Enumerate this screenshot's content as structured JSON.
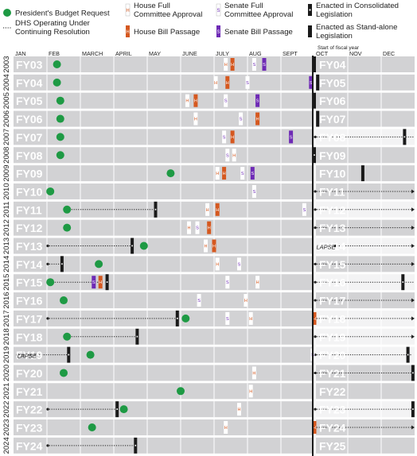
{
  "chart_data": {
    "type": "timeline",
    "title": "",
    "legend": {
      "placement": "top",
      "items": [
        {
          "key": "budget",
          "label": "President's Budget Request"
        },
        {
          "key": "cr",
          "label": "DHS Operating Under Continuing Resolution"
        },
        {
          "key": "house_committee",
          "glyph": "H",
          "label": "House Full Committee Approval"
        },
        {
          "key": "house_passage",
          "glyph": "H",
          "label": "House Bill Passage"
        },
        {
          "key": "senate_committee",
          "glyph": "S",
          "label": "Senate Full Committee Approval"
        },
        {
          "key": "senate_passage",
          "glyph": "S",
          "label": "Senate Bill Passage"
        },
        {
          "key": "enacted_consolidated",
          "label": "Enacted in Consolidated Legislation"
        },
        {
          "key": "enacted_standalone",
          "label": "Enacted as Stand-alone Legislation"
        }
      ]
    },
    "start_of_fiscal_year_label": "Start of fiscal year",
    "lapse_label": "LAPSE",
    "month_axis": [
      "JAN",
      "FEB",
      "MARCH",
      "APRIL",
      "MAY",
      "JUNE",
      "JULY",
      "AUG",
      "SEPT",
      "OCT",
      "NOV",
      "DEC"
    ],
    "colors": {
      "bar": "#d2d2d4",
      "alt_bar": "#f3f3f4",
      "budget": "#1e9a44",
      "house_passage": "#d5581f",
      "senate_passage": "#6e2ab5",
      "enacted": "#1a1a1a",
      "house_text": "#d5581f",
      "senate_text": "#6e2ab5"
    },
    "rows": [
      {
        "year": "2003",
        "fy": "FY03",
        "next_fy": "FY04",
        "dark": true,
        "budget": 1.3,
        "events": [
          {
            "type": "house_committee",
            "m": 6.35
          },
          {
            "type": "house_passage",
            "m": 6.55
          },
          {
            "type": "senate_committee",
            "m": 7.2
          },
          {
            "type": "senate_passage",
            "m": 7.5
          },
          {
            "type": "enacted_standalone",
            "m": 9.0
          }
        ]
      },
      {
        "year": "2004",
        "fy": "FY04",
        "next_fy": "FY05",
        "dark": true,
        "budget": 1.3,
        "events": [
          {
            "type": "house_committee",
            "m": 6.05
          },
          {
            "type": "house_passage",
            "m": 6.4
          },
          {
            "type": "senate_committee",
            "m": 7.0
          },
          {
            "type": "senate_passage",
            "m": 8.9
          },
          {
            "type": "enacted_standalone",
            "m": 9.1
          }
        ]
      },
      {
        "year": "2005",
        "fy": "FY05",
        "next_fy": "FY06",
        "dark": true,
        "budget": 1.4,
        "events": [
          {
            "type": "house_committee",
            "m": 5.2
          },
          {
            "type": "house_passage",
            "m": 5.45
          },
          {
            "type": "senate_committee",
            "m": 6.35
          },
          {
            "type": "senate_passage",
            "m": 7.3
          },
          {
            "type": "enacted_standalone",
            "m": 9.0
          }
        ]
      },
      {
        "year": "2006",
        "fy": "FY06",
        "next_fy": "FY07",
        "dark": true,
        "budget": 1.4,
        "events": [
          {
            "type": "house_committee",
            "m": 5.45
          },
          {
            "type": "senate_committee",
            "m": 6.8
          },
          {
            "type": "house_passage",
            "m": 7.3
          },
          {
            "type": "enacted_standalone",
            "m": 9.1
          }
        ]
      },
      {
        "year": "2007",
        "fy": "FY07",
        "next_fy": "FY08",
        "dark": false,
        "budget": 1.4,
        "cr_from": 9.0,
        "cr_to": 12.0,
        "events": [
          {
            "type": "senate_committee",
            "m": 6.3
          },
          {
            "type": "house_passage",
            "m": 6.55
          },
          {
            "type": "senate_passage",
            "m": 8.3
          },
          {
            "type": "enacted_consolidated",
            "m": 11.7
          }
        ]
      },
      {
        "year": "2008",
        "fy": "FY08",
        "next_fy": "FY09",
        "dark": true,
        "budget": 1.4,
        "events": [
          {
            "type": "senate_committee",
            "m": 6.4
          },
          {
            "type": "house_committee",
            "m": 6.6
          },
          {
            "type": "enacted_consolidated",
            "m": 9.0
          }
        ]
      },
      {
        "year": "2009",
        "fy": "FY09",
        "next_fy": "FY10",
        "dark": true,
        "budget": 4.7,
        "events": [
          {
            "type": "house_committee",
            "m": 6.1
          },
          {
            "type": "house_passage",
            "m": 6.3
          },
          {
            "type": "senate_committee",
            "m": 6.85
          },
          {
            "type": "senate_passage",
            "m": 7.15
          },
          {
            "type": "enacted_standalone",
            "m": 10.45
          }
        ]
      },
      {
        "year": "2010",
        "fy": "FY10",
        "next_fy": "FY11",
        "dark": true,
        "budget": 1.1,
        "cr_from": 9.0,
        "cr_to": 12.0,
        "arrow": true,
        "events": [
          {
            "type": "senate_committee",
            "m": 7.2
          }
        ]
      },
      {
        "year": "2011",
        "fy": "FY11",
        "next_fy": "FY12",
        "dark": false,
        "budget": 1.6,
        "cr_from": 1.6,
        "cr_to": 4.2,
        "cr2_from": 9.0,
        "cr2_to": 12.0,
        "arrow": true,
        "events": [
          {
            "type": "enacted_consolidated",
            "m": 4.25
          },
          {
            "type": "house_committee",
            "m": 5.8
          },
          {
            "type": "house_passage",
            "m": 6.1
          },
          {
            "type": "senate_committee",
            "m": 8.7
          }
        ]
      },
      {
        "year": "2012",
        "fy": "FY12",
        "next_fy": "FY13",
        "dark": true,
        "budget": 1.6,
        "cr_from": 9.0,
        "cr_to": 12.0,
        "arrow": true,
        "events": [
          {
            "type": "house_committee",
            "m": 5.25
          },
          {
            "type": "senate_committee",
            "m": 5.5
          },
          {
            "type": "house_passage",
            "m": 5.85
          }
        ]
      },
      {
        "year": "2013",
        "fy": "FY13",
        "next_fy": "FY14",
        "dark": false,
        "budget": 3.9,
        "cr_from": 1.0,
        "cr_to": 3.5,
        "cr2_from": 9.6,
        "cr2_to": 12.0,
        "arrow": true,
        "lapse": 9.25,
        "events": [
          {
            "type": "enacted_consolidated",
            "m": 3.55
          },
          {
            "type": "house_committee",
            "m": 5.75
          },
          {
            "type": "house_passage",
            "m": 6.0
          }
        ]
      },
      {
        "year": "2014",
        "fy": "FY14",
        "next_fy": "FY15",
        "dark": true,
        "budget": 2.55,
        "cr_from": 1.0,
        "cr_to": 1.4,
        "cr2_from": 9.0,
        "cr2_to": 12.0,
        "arrow": true,
        "events": [
          {
            "type": "enacted_consolidated",
            "m": 1.45
          },
          {
            "type": "house_committee",
            "m": 6.1
          },
          {
            "type": "senate_committee",
            "m": 6.75
          }
        ]
      },
      {
        "year": "2015",
        "fy": "FY15",
        "next_fy": "FY16",
        "dark": false,
        "budget": 1.1,
        "cr_from": 1.1,
        "cr_to": 2.7,
        "cr2_from": 9.0,
        "cr2_to": 12.0,
        "arrow": false,
        "events": [
          {
            "type": "senate_passage",
            "m": 2.4
          },
          {
            "type": "house_passage",
            "m": 2.6
          },
          {
            "type": "enacted_consolidated",
            "m": 2.8
          },
          {
            "type": "senate_committee",
            "m": 6.4
          },
          {
            "type": "house_committee",
            "m": 7.3
          },
          {
            "type": "enacted_consolidated",
            "m": 11.65
          }
        ]
      },
      {
        "year": "2016",
        "fy": "FY16",
        "next_fy": "FY17",
        "dark": true,
        "budget": 1.5,
        "cr_from": 9.0,
        "cr_to": 12.0,
        "arrow": true,
        "events": [
          {
            "type": "senate_committee",
            "m": 5.55
          },
          {
            "type": "house_committee",
            "m": 6.95
          }
        ]
      },
      {
        "year": "2017",
        "fy": "FY17",
        "next_fy": "FY18",
        "dark": false,
        "budget": 5.15,
        "cr_from": 1.0,
        "cr_to": 4.9,
        "cr2_from": 9.0,
        "cr2_to": 12.0,
        "arrow": true,
        "events": [
          {
            "type": "enacted_consolidated",
            "m": 4.9
          },
          {
            "type": "senate_committee",
            "m": 6.4
          },
          {
            "type": "house_committee",
            "m": 7.1
          },
          {
            "type": "house_passage",
            "m": 9.0
          }
        ]
      },
      {
        "year": "2018",
        "fy": "FY18",
        "next_fy": "FY19",
        "dark": false,
        "budget": 1.6,
        "cr_from": 1.6,
        "cr_to": 3.7,
        "cr2_from": 9.0,
        "cr2_to": 12.0,
        "arrow": true,
        "events": [
          {
            "type": "enacted_consolidated",
            "m": 3.7
          }
        ]
      },
      {
        "year": "2019",
        "fy": "FY19",
        "next_fy": "FY20",
        "dark": false,
        "budget": 2.3,
        "lapse": 0.3,
        "cr_from": 0.1,
        "cr_to": 1.6,
        "cr2_from": 9.0,
        "cr2_to": 11.9,
        "arrow": false,
        "events": [
          {
            "type": "enacted_consolidated",
            "m": 1.65
          },
          {
            "type": "senate_committee",
            "m": 8.95
          },
          {
            "type": "enacted_consolidated",
            "m": 11.8
          }
        ]
      },
      {
        "year": "2020",
        "fy": "FY20",
        "next_fy": "FY21",
        "dark": true,
        "budget": 1.5,
        "cr_from": 9.0,
        "cr_to": 12.0,
        "arrow": false,
        "events": [
          {
            "type": "house_committee",
            "m": 7.2
          },
          {
            "type": "enacted_consolidated",
            "m": 11.95
          }
        ]
      },
      {
        "year": "2021",
        "fy": "FY21",
        "next_fy": "FY22",
        "dark": true,
        "budget": 5.0,
        "events": [
          {
            "type": "house_committee",
            "m": 7.1
          }
        ]
      },
      {
        "year": "2022",
        "fy": "FY22",
        "next_fy": "FY23",
        "dark": false,
        "budget": 3.3,
        "cr_from": 1.0,
        "cr_to": 3.1,
        "cr2_from": 9.0,
        "cr2_to": 12.0,
        "arrow": false,
        "events": [
          {
            "type": "enacted_consolidated",
            "m": 3.1
          },
          {
            "type": "house_committee",
            "m": 6.75
          },
          {
            "type": "enacted_consolidated",
            "m": 11.95
          }
        ]
      },
      {
        "year": "2023",
        "fy": "FY23",
        "next_fy": "FY24",
        "dark": true,
        "budget": 2.35,
        "cr_from": 9.0,
        "cr_to": 12.0,
        "arrow": true,
        "events": [
          {
            "type": "house_committee",
            "m": 6.35
          },
          {
            "type": "house_passage",
            "m": 9.0
          }
        ]
      },
      {
        "year": "2024",
        "fy": "FY24",
        "next_fy": "FY25",
        "dark": true,
        "cr_from": 1.0,
        "cr_to": 3.65,
        "events": [
          {
            "type": "enacted_consolidated",
            "m": 3.65
          }
        ]
      }
    ]
  }
}
